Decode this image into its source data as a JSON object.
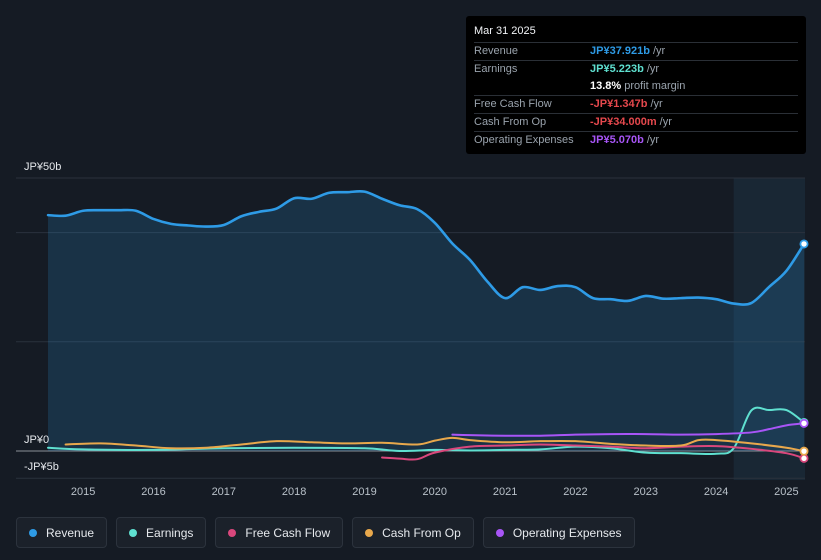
{
  "tooltip": {
    "date": "Mar 31 2025",
    "rows": [
      {
        "label": "Revenue",
        "value": "JP¥37.921b",
        "unit": "/yr",
        "color": "#2e9be6"
      },
      {
        "label": "Earnings",
        "value": "JP¥5.223b",
        "unit": "/yr",
        "color": "#5fe0d0"
      },
      {
        "label": "",
        "value": "13.8%",
        "unit": "profit margin",
        "color": "#ffffff"
      },
      {
        "label": "Free Cash Flow",
        "value": "-JP¥1.347b",
        "unit": "/yr",
        "color": "#e5484d"
      },
      {
        "label": "Cash From Op",
        "value": "-JP¥34.000m",
        "unit": "/yr",
        "color": "#e5484d"
      },
      {
        "label": "Operating Expenses",
        "value": "JP¥5.070b",
        "unit": "/yr",
        "color": "#a855f7"
      }
    ]
  },
  "legend": [
    {
      "label": "Revenue",
      "color": "#2e9be6"
    },
    {
      "label": "Earnings",
      "color": "#5fe0d0"
    },
    {
      "label": "Free Cash Flow",
      "color": "#d9477c"
    },
    {
      "label": "Cash From Op",
      "color": "#e8a84c"
    },
    {
      "label": "Operating Expenses",
      "color": "#a855f7"
    }
  ],
  "chart_data": {
    "type": "area",
    "title": "",
    "y_unit": "JP¥b",
    "ylim": [
      -5,
      50
    ],
    "xlim": [
      2014.5,
      2025.25
    ],
    "y_tick_labels": [
      {
        "value": 50,
        "label": "JP¥50b"
      },
      {
        "value": 0,
        "label": "JP¥0"
      },
      {
        "value": -5,
        "label": "-JP¥5b"
      }
    ],
    "x_ticks": [
      2015,
      2016,
      2017,
      2018,
      2019,
      2020,
      2021,
      2022,
      2023,
      2024,
      2025
    ],
    "x_tick_labels": [
      "2015",
      "2016",
      "2017",
      "2018",
      "2019",
      "2020",
      "2021",
      "2022",
      "2023",
      "2024",
      "2025"
    ],
    "highlight_from": 2024.25,
    "series": [
      {
        "name": "Revenue",
        "color": "#2e9be6",
        "fill": true,
        "points": [
          [
            2014.5,
            43.2
          ],
          [
            2014.75,
            43.1
          ],
          [
            2015.0,
            44.0
          ],
          [
            2015.25,
            44.1
          ],
          [
            2015.5,
            44.1
          ],
          [
            2015.75,
            44.0
          ],
          [
            2016.0,
            42.5
          ],
          [
            2016.25,
            41.6
          ],
          [
            2016.5,
            41.3
          ],
          [
            2016.75,
            41.1
          ],
          [
            2017.0,
            41.4
          ],
          [
            2017.25,
            43.0
          ],
          [
            2017.5,
            43.8
          ],
          [
            2017.75,
            44.4
          ],
          [
            2018.0,
            46.3
          ],
          [
            2018.25,
            46.2
          ],
          [
            2018.5,
            47.3
          ],
          [
            2018.75,
            47.4
          ],
          [
            2019.0,
            47.5
          ],
          [
            2019.25,
            46.2
          ],
          [
            2019.5,
            45.0
          ],
          [
            2019.75,
            44.3
          ],
          [
            2020.0,
            41.8
          ],
          [
            2020.25,
            38.0
          ],
          [
            2020.5,
            35.0
          ],
          [
            2020.75,
            31.0
          ],
          [
            2021.0,
            28.0
          ],
          [
            2021.25,
            30.0
          ],
          [
            2021.5,
            29.5
          ],
          [
            2021.75,
            30.2
          ],
          [
            2022.0,
            30.0
          ],
          [
            2022.25,
            28.0
          ],
          [
            2022.5,
            27.8
          ],
          [
            2022.75,
            27.5
          ],
          [
            2023.0,
            28.4
          ],
          [
            2023.25,
            27.9
          ],
          [
            2023.5,
            28.0
          ],
          [
            2023.75,
            28.1
          ],
          [
            2024.0,
            27.8
          ],
          [
            2024.25,
            27.0
          ],
          [
            2024.5,
            27.1
          ],
          [
            2024.75,
            30.0
          ],
          [
            2025.0,
            33.0
          ],
          [
            2025.25,
            37.921
          ]
        ]
      },
      {
        "name": "Earnings",
        "color": "#5fe0d0",
        "fill": false,
        "points": [
          [
            2014.5,
            0.6
          ],
          [
            2015.0,
            0.3
          ],
          [
            2016.0,
            0.2
          ],
          [
            2017.0,
            0.5
          ],
          [
            2018.0,
            0.6
          ],
          [
            2019.0,
            0.5
          ],
          [
            2019.5,
            0.0
          ],
          [
            2020.0,
            0.2
          ],
          [
            2020.5,
            0.1
          ],
          [
            2021.0,
            0.2
          ],
          [
            2021.5,
            0.3
          ],
          [
            2022.0,
            0.8
          ],
          [
            2022.5,
            0.5
          ],
          [
            2023.0,
            -0.3
          ],
          [
            2023.5,
            -0.4
          ],
          [
            2024.0,
            -0.5
          ],
          [
            2024.25,
            0.5
          ],
          [
            2024.5,
            7.4
          ],
          [
            2024.75,
            7.5
          ],
          [
            2025.0,
            7.5
          ],
          [
            2025.25,
            5.223
          ]
        ]
      },
      {
        "name": "Free Cash Flow",
        "color": "#d9477c",
        "fill": false,
        "points": [
          [
            2019.25,
            -1.2
          ],
          [
            2019.5,
            -1.4
          ],
          [
            2019.75,
            -1.5
          ],
          [
            2020.0,
            -0.3
          ],
          [
            2020.5,
            0.8
          ],
          [
            2021.0,
            1.0
          ],
          [
            2021.5,
            1.2
          ],
          [
            2022.0,
            1.0
          ],
          [
            2022.5,
            0.8
          ],
          [
            2023.0,
            0.5
          ],
          [
            2023.5,
            0.8
          ],
          [
            2024.0,
            0.9
          ],
          [
            2024.5,
            0.4
          ],
          [
            2025.0,
            -0.4
          ],
          [
            2025.25,
            -1.347
          ]
        ]
      },
      {
        "name": "Cash From Op",
        "color": "#e8a84c",
        "fill": false,
        "points": [
          [
            2014.75,
            1.2
          ],
          [
            2015.25,
            1.4
          ],
          [
            2015.75,
            1.0
          ],
          [
            2016.25,
            0.5
          ],
          [
            2016.75,
            0.6
          ],
          [
            2017.25,
            1.2
          ],
          [
            2017.75,
            1.8
          ],
          [
            2018.25,
            1.6
          ],
          [
            2018.75,
            1.4
          ],
          [
            2019.25,
            1.5
          ],
          [
            2019.75,
            1.2
          ],
          [
            2020.0,
            1.9
          ],
          [
            2020.25,
            2.4
          ],
          [
            2020.5,
            2.0
          ],
          [
            2021.0,
            1.6
          ],
          [
            2021.5,
            1.8
          ],
          [
            2022.0,
            1.8
          ],
          [
            2022.5,
            1.3
          ],
          [
            2023.0,
            1.0
          ],
          [
            2023.5,
            1.0
          ],
          [
            2023.75,
            2.0
          ],
          [
            2024.0,
            2.0
          ],
          [
            2024.5,
            1.4
          ],
          [
            2025.0,
            0.6
          ],
          [
            2025.25,
            -0.034
          ]
        ]
      },
      {
        "name": "Operating Expenses",
        "color": "#a855f7",
        "fill": false,
        "points": [
          [
            2020.25,
            3.0
          ],
          [
            2020.5,
            2.9
          ],
          [
            2021.0,
            2.8
          ],
          [
            2021.5,
            2.8
          ],
          [
            2022.0,
            3.0
          ],
          [
            2022.5,
            3.1
          ],
          [
            2023.0,
            3.1
          ],
          [
            2023.5,
            3.0
          ],
          [
            2024.0,
            3.1
          ],
          [
            2024.5,
            3.4
          ],
          [
            2024.75,
            4.0
          ],
          [
            2025.0,
            4.7
          ],
          [
            2025.25,
            5.07
          ]
        ]
      }
    ]
  }
}
